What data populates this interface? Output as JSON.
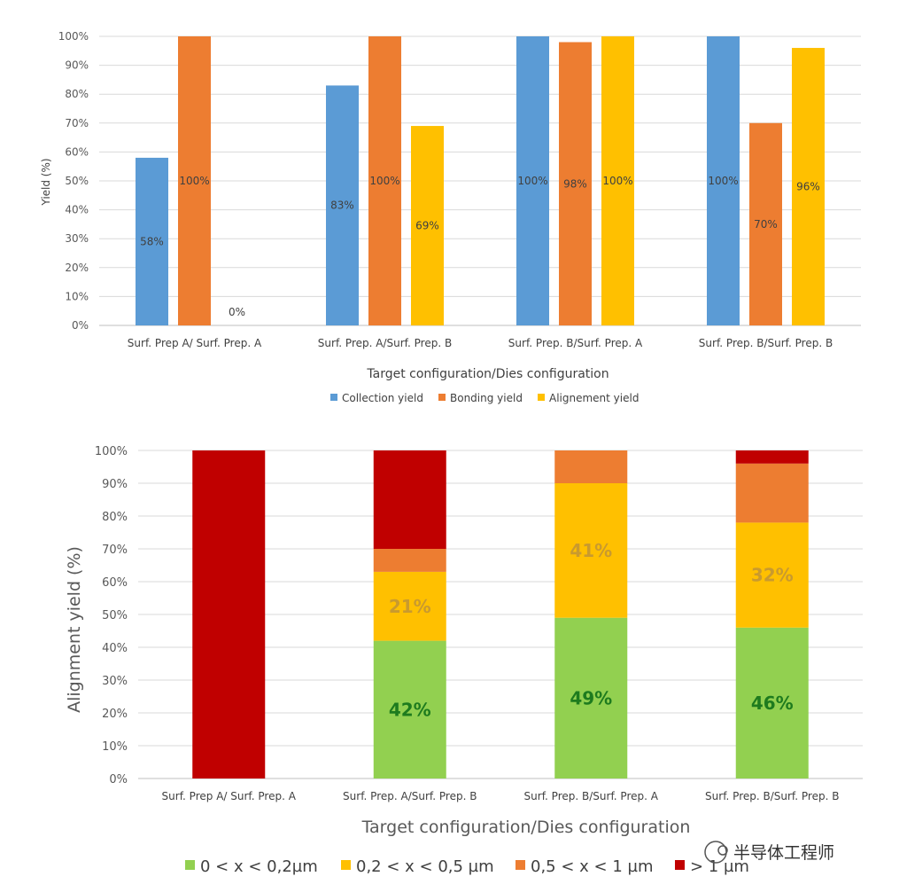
{
  "chart_data": [
    {
      "type": "bar",
      "categories": [
        "Surf. Prep A/ Surf. Prep. A",
        "Surf. Prep. A/Surf. Prep. B",
        "Surf. Prep. B/Surf. Prep. A",
        "Surf. Prep. B/Surf. Prep. B"
      ],
      "series": [
        {
          "name": "Collection yield",
          "values": [
            58,
            83,
            100,
            100
          ],
          "labels": [
            "58%",
            "83%",
            "100%",
            "100%"
          ],
          "color": "#5B9BD5"
        },
        {
          "name": "Bonding yield",
          "values": [
            100,
            100,
            98,
            70
          ],
          "labels": [
            "100%",
            "100%",
            "98%",
            "70%"
          ],
          "color": "#ED7D31"
        },
        {
          "name": "Alignement yield",
          "values": [
            0,
            69,
            100,
            96
          ],
          "labels": [
            "0%",
            "69%",
            "100%",
            "96%"
          ],
          "color": "#FFC000"
        }
      ],
      "xlabel": "Target configuration/Dies configuration",
      "ylabel": "Yield (%)",
      "ylim": [
        0,
        100
      ],
      "yticks": [
        "0%",
        "10%",
        "20%",
        "30%",
        "40%",
        "50%",
        "60%",
        "70%",
        "80%",
        "90%",
        "100%"
      ],
      "grid": true,
      "legend_position": "bottom"
    },
    {
      "type": "bar",
      "stacked": true,
      "categories": [
        "Surf. Prep A/ Surf. Prep. A",
        "Surf. Prep. A/Surf. Prep. B",
        "Surf. Prep. B/Surf. Prep. A",
        "Surf. Prep. B/Surf. Prep. B"
      ],
      "series": [
        {
          "name": "0 < x < 0,2µm",
          "values": [
            0,
            42,
            49,
            46
          ],
          "labels": [
            "",
            "42%",
            "49%",
            "46%"
          ],
          "color": "#92D050",
          "label_color": "#1E7B1E"
        },
        {
          "name": "0,2 < x < 0,5 µm",
          "values": [
            0,
            21,
            41,
            32
          ],
          "labels": [
            "",
            "21%",
            "41%",
            "32%"
          ],
          "color": "#FFC000",
          "label_color": "#C99A2E"
        },
        {
          "name": "0,5 < x < 1 µm",
          "values": [
            0,
            7,
            10,
            18
          ],
          "labels": [
            "",
            "",
            "",
            ""
          ],
          "color": "#ED7D31",
          "label_color": "#404040"
        },
        {
          "name": "> 1 µm",
          "values": [
            100,
            30,
            0,
            4
          ],
          "labels": [
            "",
            "",
            "",
            ""
          ],
          "color": "#C00000",
          "label_color": "#404040"
        }
      ],
      "xlabel": "Target configuration/Dies configuration",
      "ylabel": "Alignment yield (%)",
      "ylim": [
        0,
        100
      ],
      "yticks": [
        "0%",
        "10%",
        "20%",
        "30%",
        "40%",
        "50%",
        "60%",
        "70%",
        "80%",
        "90%",
        "100%"
      ],
      "grid": true,
      "legend_position": "bottom"
    }
  ],
  "watermark": "半导体工程师"
}
